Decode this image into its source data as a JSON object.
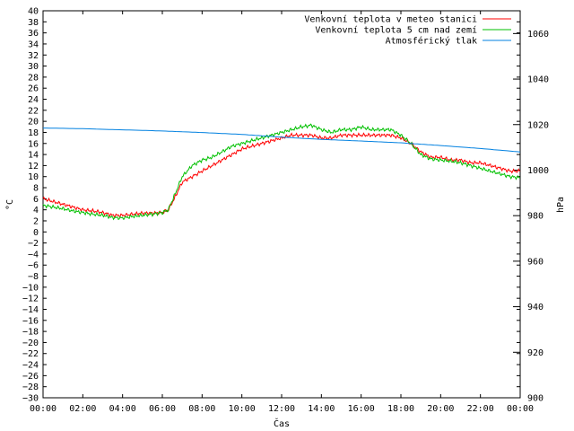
{
  "chart_data": {
    "type": "line",
    "xlabel": "Čas",
    "ylabel": "°C",
    "y2label": "hPa",
    "x_ticks": [
      "00:00",
      "02:00",
      "04:00",
      "06:00",
      "08:00",
      "10:00",
      "12:00",
      "14:00",
      "16:00",
      "18:00",
      "20:00",
      "22:00",
      "00:00"
    ],
    "x_range": [
      0,
      24
    ],
    "ylim": [
      -30,
      40
    ],
    "y_step": 2,
    "y2lim": [
      900,
      1070
    ],
    "y2_ticks": [
      900,
      920,
      940,
      960,
      980,
      1000,
      1020,
      1040,
      1060
    ],
    "grid": false,
    "legend_position": "top-right",
    "series": [
      {
        "name": "Venkovní teplota v meteo stanici",
        "color": "#ff0000",
        "axis": "left",
        "x": [
          0,
          0.5,
          1,
          1.5,
          2,
          2.5,
          3,
          3.5,
          4,
          4.5,
          5,
          5.5,
          6,
          6.3,
          6.6,
          7,
          7.5,
          8,
          8.5,
          9,
          9.5,
          10,
          10.5,
          11,
          11.5,
          12,
          12.5,
          13,
          13.5,
          14,
          14.5,
          15,
          15.5,
          16,
          16.5,
          17,
          17.5,
          18,
          18.5,
          19,
          19.5,
          20,
          20.5,
          21,
          21.5,
          22,
          22.5,
          23,
          23.5,
          24
        ],
        "y": [
          6,
          5.5,
          5,
          4.5,
          4,
          3.8,
          3.5,
          3,
          3,
          3.2,
          3.4,
          3.4,
          3.5,
          4,
          6,
          9,
          10,
          11,
          12,
          13,
          14,
          15,
          15.5,
          16,
          16.5,
          17,
          17.5,
          17.5,
          17.5,
          17,
          17,
          17.5,
          17.5,
          17.5,
          17.5,
          17.5,
          17.5,
          17,
          16,
          14.5,
          13.5,
          13.5,
          13,
          13,
          12.5,
          12.5,
          12,
          11.5,
          11,
          11
        ]
      },
      {
        "name": "Venkovní teplota 5 cm nad zemí",
        "color": "#00c000",
        "axis": "left",
        "x": [
          0,
          0.5,
          1,
          1.5,
          2,
          2.5,
          3,
          3.5,
          4,
          4.5,
          5,
          5.5,
          6,
          6.3,
          6.6,
          7,
          7.5,
          8,
          8.5,
          9,
          9.5,
          10,
          10.5,
          11,
          11.5,
          12,
          12.5,
          13,
          13.5,
          14,
          14.5,
          15,
          15.5,
          16,
          16.5,
          17,
          17.5,
          18,
          18.5,
          19,
          19.5,
          20,
          20.5,
          21,
          21.5,
          22,
          22.5,
          23,
          23.5,
          24
        ],
        "y": [
          4.8,
          4.5,
          4.2,
          3.8,
          3.5,
          3.2,
          3,
          2.6,
          2.5,
          2.8,
          3,
          3.2,
          3.5,
          4,
          6.5,
          10,
          12,
          13,
          13.5,
          14.5,
          15.5,
          16,
          16.5,
          17,
          17.5,
          18,
          18.5,
          19,
          19.3,
          18.5,
          18,
          18.5,
          18.5,
          19,
          18.5,
          18.5,
          18.5,
          17.5,
          16,
          14,
          13.2,
          13,
          12.8,
          12.5,
          12,
          11.5,
          11,
          10.5,
          10,
          9.8
        ]
      },
      {
        "name": "Atmosférický tlak",
        "color": "#0080e0",
        "axis": "right",
        "x": [
          0,
          2,
          4,
          6,
          8,
          10,
          12,
          14,
          16,
          18,
          20,
          22,
          24
        ],
        "y": [
          1018.5,
          1018.2,
          1017.7,
          1017.2,
          1016.5,
          1015.7,
          1014.5,
          1013.5,
          1012.8,
          1012,
          1010.8,
          1009.5,
          1008
        ]
      }
    ]
  }
}
